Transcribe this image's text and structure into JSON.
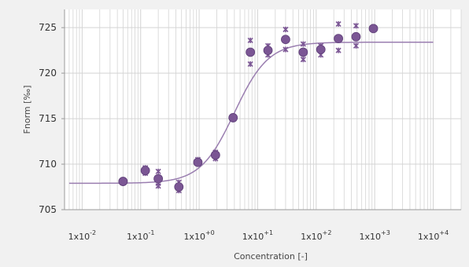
{
  "chart_data": {
    "type": "scatter",
    "xscale": "log",
    "xlim": [
      0.005,
      30000
    ],
    "ylim": [
      705,
      727
    ],
    "xlabel": "Concentration [-]",
    "ylabel": "Fnorm [‰]",
    "grid": true,
    "x_ticks": [
      {
        "base": "1x10",
        "exp": "-2",
        "value": 0.01
      },
      {
        "base": "1x10",
        "exp": "-1",
        "value": 0.1
      },
      {
        "base": "1x10",
        "exp": "+0",
        "value": 1
      },
      {
        "base": "1x10",
        "exp": "+1",
        "value": 10
      },
      {
        "base": "1x10",
        "exp": "+2",
        "value": 100
      },
      {
        "base": "1x10",
        "exp": "+3",
        "value": 1000
      },
      {
        "base": "1x10",
        "exp": "+4",
        "value": 10000
      }
    ],
    "y_ticks": [
      705,
      710,
      715,
      720,
      725
    ],
    "colors": {
      "points": "#7b5694",
      "fit": "#9a7eb0",
      "background": "#f1f1f1",
      "plot": "#ffffff",
      "grid": "#d4d4d4"
    },
    "points": [
      {
        "x": 0.05,
        "y": 708.1,
        "reps": []
      },
      {
        "x": 0.12,
        "y": 709.3,
        "reps": [
          709.0,
          709.6
        ]
      },
      {
        "x": 0.2,
        "y": 708.4,
        "reps": [
          709.2,
          707.6,
          707.9
        ]
      },
      {
        "x": 0.45,
        "y": 707.5,
        "reps": [
          708.0,
          707.1
        ]
      },
      {
        "x": 0.95,
        "y": 710.2,
        "reps": [
          710.5
        ]
      },
      {
        "x": 1.9,
        "y": 711.0,
        "reps": [
          711.3,
          710.6
        ]
      },
      {
        "x": 3.8,
        "y": 715.1,
        "reps": []
      },
      {
        "x": 7.5,
        "y": 722.3,
        "reps": [
          723.6,
          721.0
        ]
      },
      {
        "x": 15,
        "y": 722.5,
        "reps": [
          723.0,
          722.0
        ]
      },
      {
        "x": 30,
        "y": 723.7,
        "reps": [
          724.8,
          722.6
        ]
      },
      {
        "x": 60,
        "y": 722.3,
        "reps": [
          723.2,
          721.5
        ]
      },
      {
        "x": 120,
        "y": 722.6,
        "reps": [
          723.0,
          722.0
        ]
      },
      {
        "x": 240,
        "y": 723.8,
        "reps": [
          725.4,
          722.5
        ]
      },
      {
        "x": 480,
        "y": 724.0,
        "reps": [
          725.2,
          723.0
        ]
      },
      {
        "x": 950,
        "y": 724.9,
        "reps": []
      }
    ],
    "fit": {
      "model": "sigmoid",
      "lower": 707.9,
      "upper": 723.4,
      "ec50": 4.0,
      "hill": 1.5,
      "x_range": [
        0.006,
        10000
      ]
    }
  }
}
